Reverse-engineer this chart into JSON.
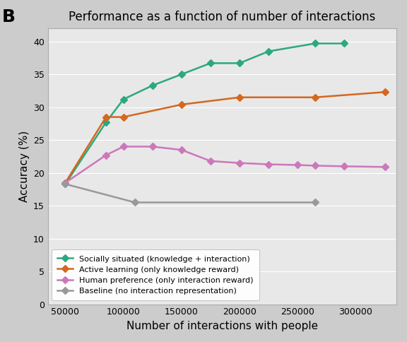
{
  "title": "Performance as a function of number of interactions",
  "xlabel": "Number of interactions with people",
  "ylabel": "Accuracy (%)",
  "panel_label": "B",
  "background_color": "#cccccc",
  "plot_bg_color": "#e8e8e8",
  "series": [
    {
      "label": "Socially situated (knowledge + interaction)",
      "color": "#2ca87f",
      "marker": "D",
      "x": [
        50000,
        85000,
        100000,
        125000,
        150000,
        175000,
        200000,
        225000,
        265000,
        290000
      ],
      "y": [
        18.3,
        27.7,
        31.2,
        33.3,
        35.0,
        36.7,
        36.7,
        38.5,
        39.7,
        39.7
      ]
    },
    {
      "label": "Active learning (only knowledge reward)",
      "color": "#d4681e",
      "marker": "D",
      "x": [
        50000,
        85000,
        100000,
        150000,
        200000,
        265000,
        325000
      ],
      "y": [
        18.5,
        28.5,
        28.5,
        30.4,
        31.5,
        31.5,
        32.3
      ]
    },
    {
      "label": "Human preference (only interaction reward)",
      "color": "#cc77bb",
      "marker": "D",
      "x": [
        50000,
        85000,
        100000,
        125000,
        150000,
        175000,
        200000,
        225000,
        250000,
        265000,
        290000,
        325000
      ],
      "y": [
        18.5,
        22.7,
        24.0,
        24.0,
        23.5,
        21.8,
        21.5,
        21.3,
        21.2,
        21.1,
        21.0,
        20.9
      ]
    },
    {
      "label": "Baseline (no interaction representation)",
      "color": "#999999",
      "marker": "D",
      "x": [
        50000,
        110000,
        265000
      ],
      "y": [
        18.3,
        15.5,
        15.5
      ]
    }
  ],
  "xlim": [
    35000,
    335000
  ],
  "ylim": [
    0,
    42
  ],
  "yticks": [
    0,
    5,
    10,
    15,
    20,
    25,
    30,
    35,
    40
  ],
  "xticks": [
    50000,
    100000,
    150000,
    200000,
    250000,
    300000
  ],
  "xtick_labels": [
    "50000",
    "100000",
    "150000",
    "200000",
    "250000",
    "300000"
  ]
}
